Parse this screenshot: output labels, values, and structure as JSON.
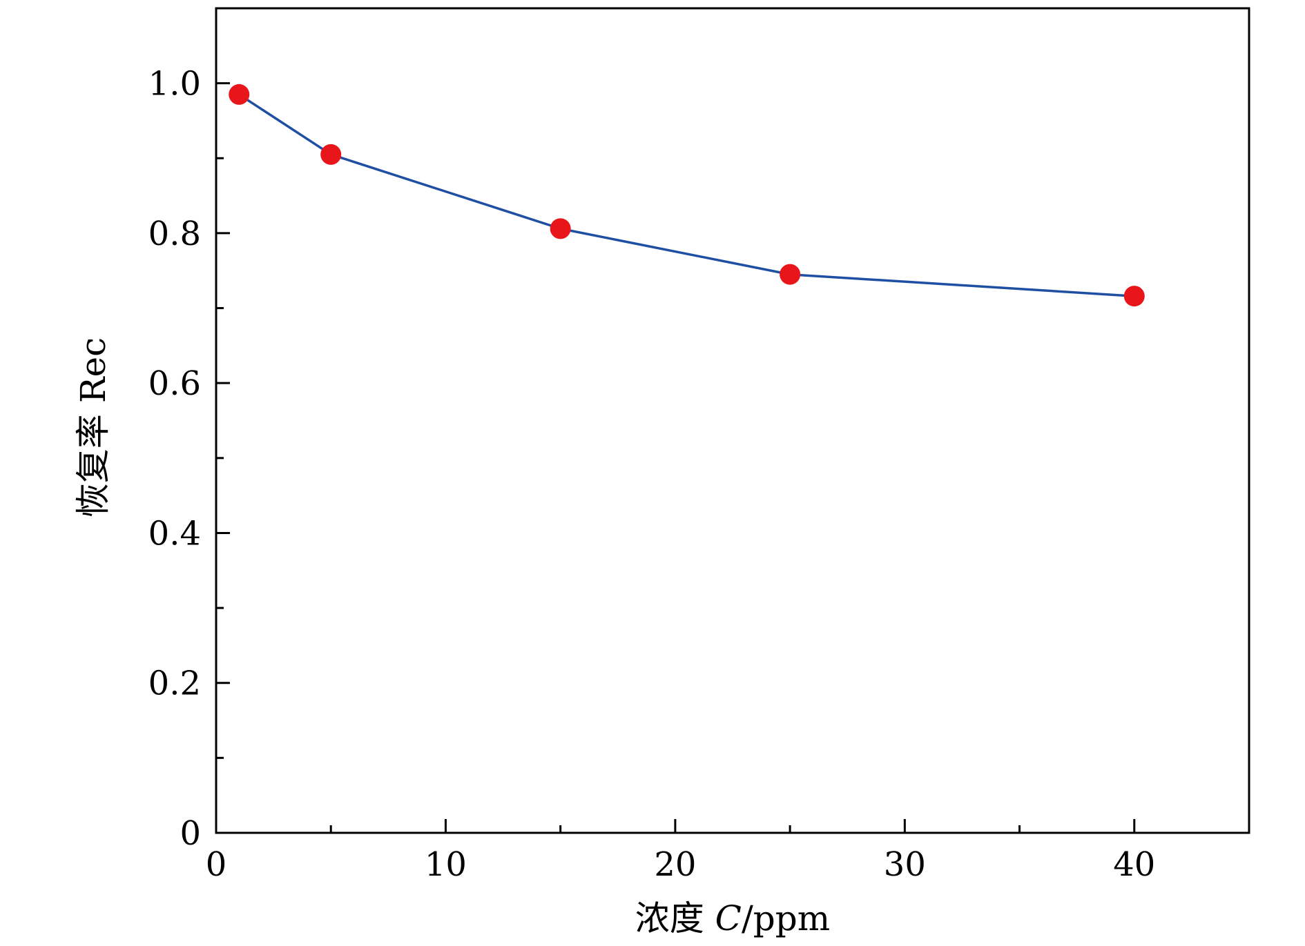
{
  "chart_data": {
    "type": "line",
    "x": [
      1,
      5,
      15,
      25,
      40
    ],
    "series": [
      {
        "values": [
          0.985,
          0.905,
          0.806,
          0.745,
          0.716
        ],
        "line_color": "#1f4fa3",
        "marker_color": "#e8151b"
      }
    ],
    "xlabel_main": "浓度 ",
    "xlabel_var": "C",
    "xlabel_unit": "/ppm",
    "ylabel": "恢复率 Rec",
    "xlim": [
      0,
      45
    ],
    "ylim": [
      0,
      1.1
    ],
    "x_ticks": [
      {
        "value": 0,
        "label": "0"
      },
      {
        "value": 10,
        "label": "10"
      },
      {
        "value": 20,
        "label": "20"
      },
      {
        "value": 30,
        "label": "30"
      },
      {
        "value": 40,
        "label": "40"
      }
    ],
    "y_ticks": [
      {
        "value": 0,
        "label": "0"
      },
      {
        "value": 0.2,
        "label": "0.2"
      },
      {
        "value": 0.4,
        "label": "0.4"
      },
      {
        "value": 0.6,
        "label": "0.6"
      },
      {
        "value": 0.8,
        "label": "0.8"
      },
      {
        "value": 1.0,
        "label": "1.0"
      }
    ],
    "x_minor_ticks": [
      5,
      15,
      25,
      35
    ],
    "y_minor_ticks": [
      0.1,
      0.3,
      0.5,
      0.7,
      0.9
    ],
    "grid": false,
    "legend": "none"
  }
}
